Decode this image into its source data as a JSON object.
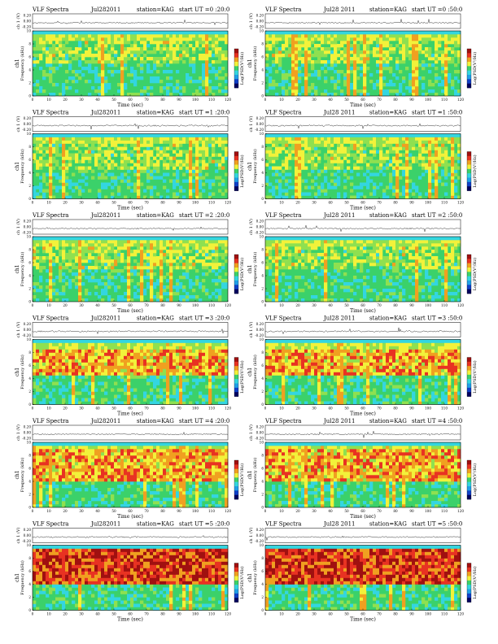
{
  "page": {
    "layout": "6 rows x 2 columns of VLF spectrogram panels, each with an amplitude trace above a spectrogram and a vertical colorbar at right"
  },
  "common": {
    "title": "VLF Spectra",
    "date_left": "Jul282011",
    "date_right": "Jul28 2011",
    "station": "station=KAG",
    "xlabel": "Time  (sec)",
    "ylabel_main": "ch1",
    "ylabel_freq": "Frequency  (kHz)",
    "ylabel_amp": "ch 1 (V)",
    "colorbar_label": "Log(PSD(V²/Hz)",
    "x_ticks": [
      "0",
      "10",
      "20",
      "30",
      "40",
      "50",
      "60",
      "70",
      "80",
      "90",
      "100",
      "110",
      "120"
    ],
    "y_ticks": [
      "0",
      "2",
      "4",
      "6",
      "8",
      "10"
    ],
    "amp_ticks": [
      "0.20",
      "0.00",
      "-0.20"
    ],
    "colors": {
      "background_green": "#3bd16a",
      "cyan_band": "#33d6e0",
      "yellow": "#f2f23a",
      "red": "#e83222",
      "dark_red": "#a01010",
      "blue": "#1040c8"
    }
  },
  "panels": [
    {
      "start": "start  UT =0 :20:0"
    },
    {
      "start": "start  UT =0 :50:0"
    },
    {
      "start": "start  UT =1 :20:0"
    },
    {
      "start": "start  UT =1 :50:0"
    },
    {
      "start": "start  UT =2 :20:0"
    },
    {
      "start": "start  UT =2 :50:0"
    },
    {
      "start": "start  UT =3 :20:0"
    },
    {
      "start": "start  UT =3 :50:0"
    },
    {
      "start": "start  UT =4 :20:0"
    },
    {
      "start": "start  UT =4 :50:0"
    },
    {
      "start": "start  UT =5 :20:0"
    },
    {
      "start": "start  UT =5 :50:0"
    }
  ],
  "chart_data": {
    "type": "heatmap",
    "description": "12 VLF spectrogram panels (frequency 0-10 kHz vs time 0-120 s), intensity shown as log PSD color; strong activity band between about 5 and 8.5 kHz, intensifying in later hours",
    "xlim": [
      0,
      120
    ],
    "ylim": [
      0,
      10
    ],
    "xlabel": "Time  (sec)",
    "ylabel": "Frequency  (kHz)",
    "colorbar": "Log(PSD(V²/Hz)",
    "amplitude_ylim": [
      -0.2,
      0.2
    ],
    "panels": [
      {
        "start_ut": "0:20:0",
        "activity_band_khz": [
          5,
          8.5
        ],
        "intensity": "medium"
      },
      {
        "start_ut": "0:50:0",
        "activity_band_khz": [
          5,
          8.5
        ],
        "intensity": "medium"
      },
      {
        "start_ut": "1:20:0",
        "activity_band_khz": [
          4.5,
          8.5
        ],
        "intensity": "medium"
      },
      {
        "start_ut": "1:50:0",
        "activity_band_khz": [
          4.5,
          8.5
        ],
        "intensity": "medium"
      },
      {
        "start_ut": "2:20:0",
        "activity_band_khz": [
          5,
          8.5
        ],
        "intensity": "medium"
      },
      {
        "start_ut": "2:50:0",
        "activity_band_khz": [
          5,
          8.5
        ],
        "intensity": "medium"
      },
      {
        "start_ut": "3:20:0",
        "activity_band_khz": [
          4.5,
          8.5
        ],
        "intensity": "high"
      },
      {
        "start_ut": "3:50:0",
        "activity_band_khz": [
          4.5,
          8.5
        ],
        "intensity": "high"
      },
      {
        "start_ut": "4:20:0",
        "activity_band_khz": [
          4,
          9
        ],
        "intensity": "high"
      },
      {
        "start_ut": "4:50:0",
        "activity_band_khz": [
          4,
          9
        ],
        "intensity": "high"
      },
      {
        "start_ut": "5:20:0",
        "activity_band_khz": [
          4,
          9.5
        ],
        "intensity": "very high"
      },
      {
        "start_ut": "5:50:0",
        "activity_band_khz": [
          4,
          9.5
        ],
        "intensity": "very high"
      }
    ]
  }
}
